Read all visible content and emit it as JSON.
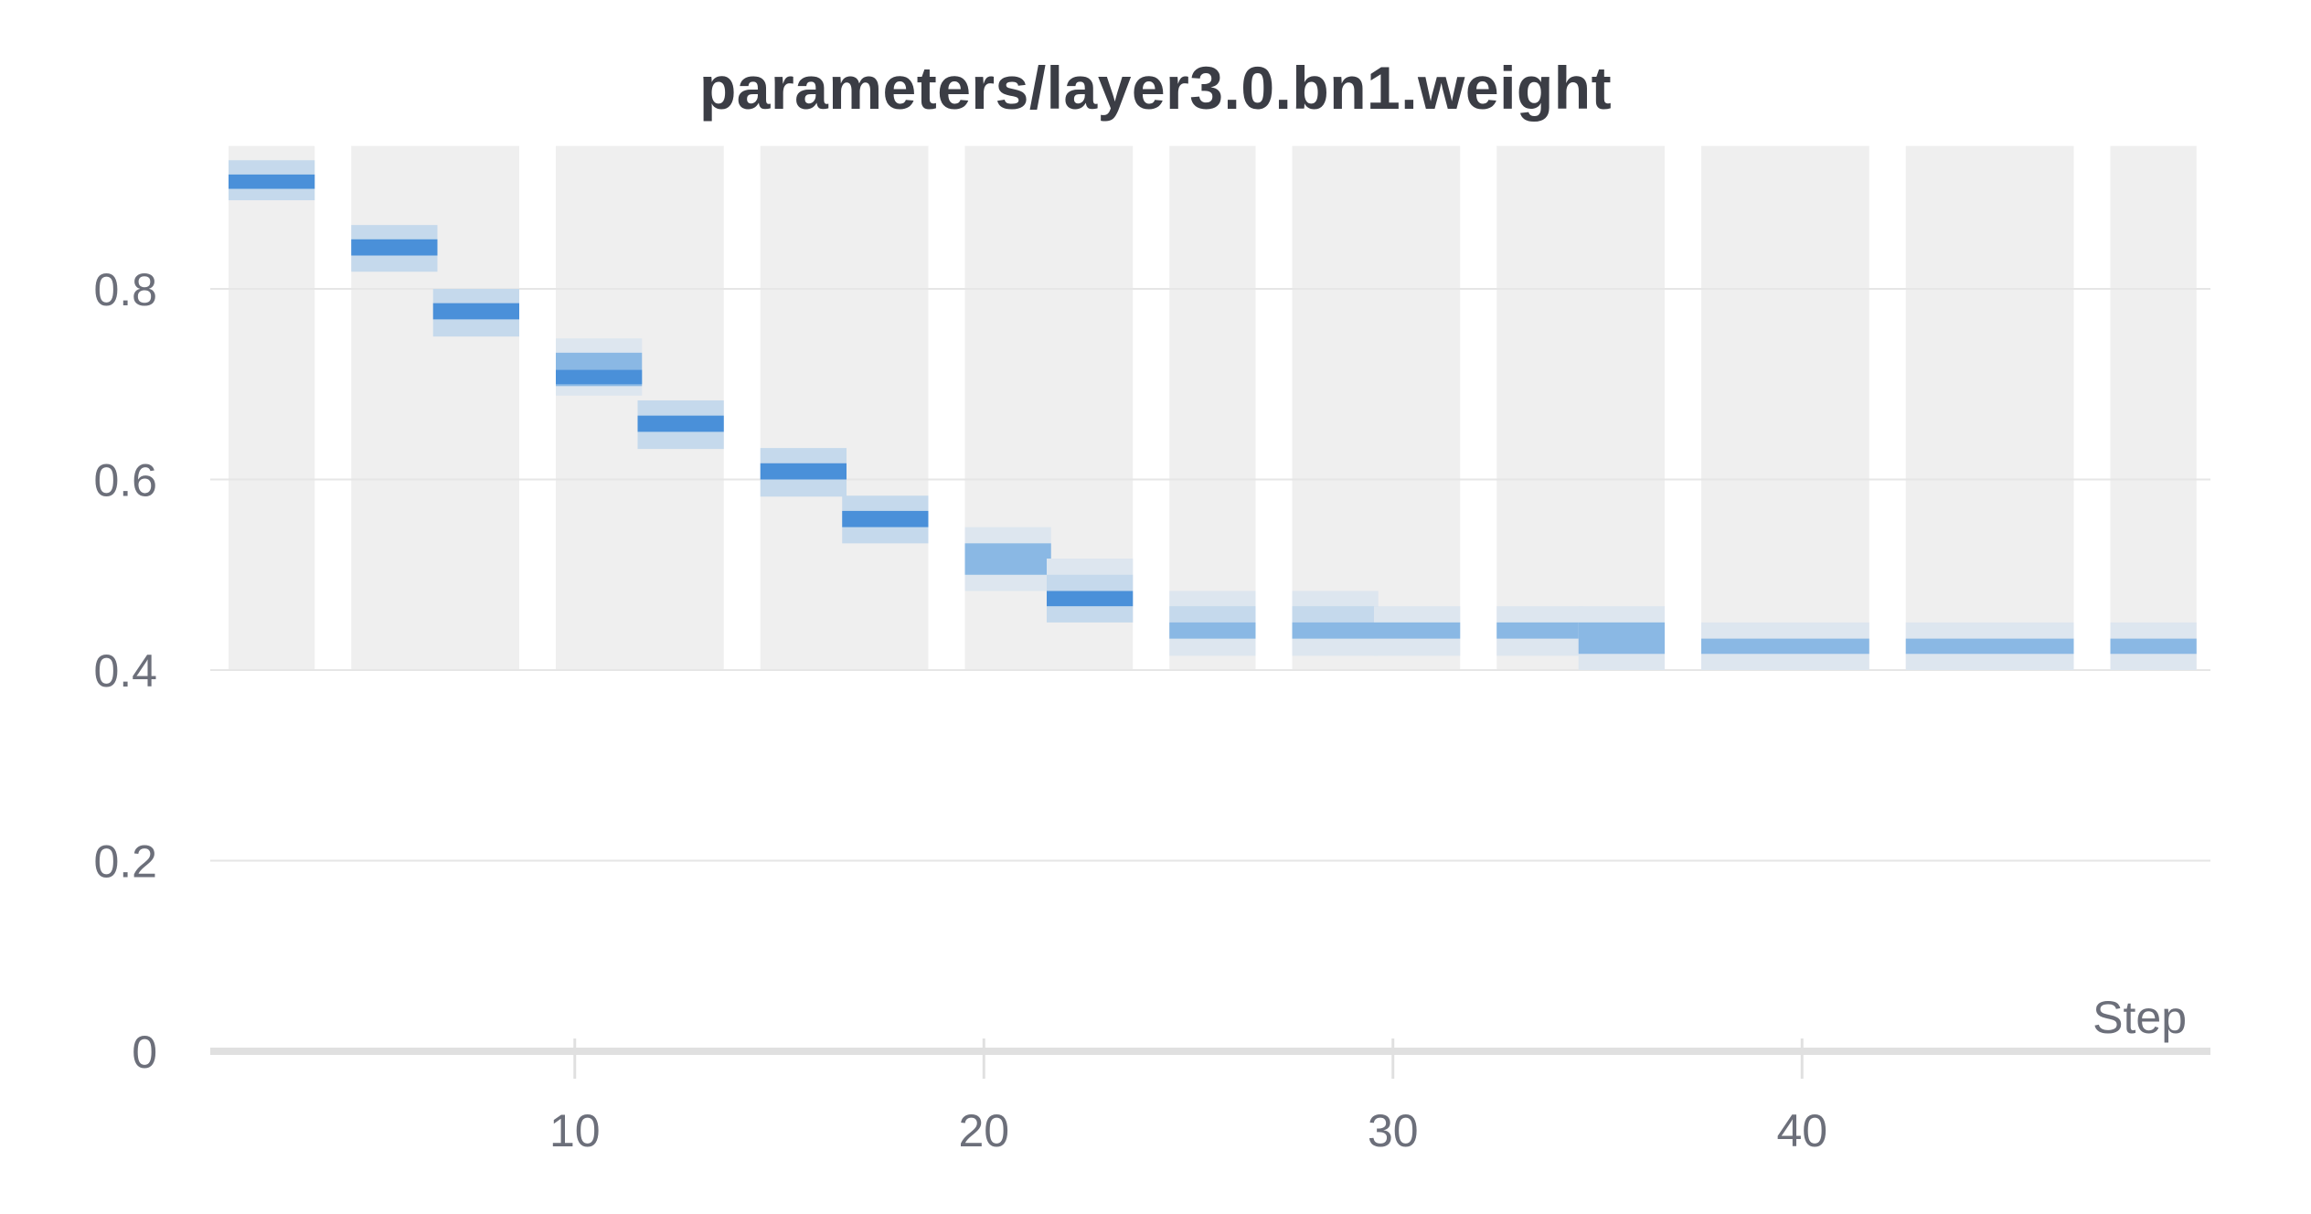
{
  "chart_data": {
    "type": "heatmap",
    "title": "parameters/layer3.0.bn1.weight",
    "xlabel": "Step",
    "ylabel": "",
    "xlim": [
      0.5,
      49.5
    ],
    "ylim": [
      0,
      0.95
    ],
    "x_ticks": [
      10,
      20,
      30,
      40
    ],
    "y_ticks": [
      0,
      0.2,
      0.4,
      0.6,
      0.8
    ],
    "y_tick_labels": [
      "0",
      "0.2",
      "0.4",
      "0.6",
      "0.8"
    ],
    "grid": true,
    "colors": {
      "background_band": "#efefef",
      "peak": "#4a90d9",
      "mid": "#8ab8e4",
      "low": "#c5d9ec",
      "tail": "#dde6ef",
      "grid": "#e6e6e6",
      "axis": "#e0e0e0"
    },
    "background_bands": [
      {
        "x_start": 1,
        "x_end": 3
      },
      {
        "x_start": 4,
        "x_end": 8
      },
      {
        "x_start": 9,
        "x_end": 13
      },
      {
        "x_start": 14,
        "x_end": 18
      },
      {
        "x_start": 19,
        "x_end": 23
      },
      {
        "x_start": 24,
        "x_end": 26
      },
      {
        "x_start": 27,
        "x_end": 31
      },
      {
        "x_start": 32,
        "x_end": 36
      },
      {
        "x_start": 37,
        "x_end": 41
      },
      {
        "x_start": 42,
        "x_end": 46
      },
      {
        "x_start": 47,
        "x_end": 49
      }
    ],
    "bands": [
      {
        "x_start": 1,
        "x_end": 3,
        "y_start": 0.893,
        "y_end": 0.935,
        "intensity": "low"
      },
      {
        "x_start": 1,
        "x_end": 3,
        "y_start": 0.905,
        "y_end": 0.92,
        "intensity": "peak"
      },
      {
        "x_start": 4,
        "x_end": 6,
        "y_start": 0.818,
        "y_end": 0.867,
        "intensity": "low"
      },
      {
        "x_start": 4,
        "x_end": 6,
        "y_start": 0.835,
        "y_end": 0.852,
        "intensity": "peak"
      },
      {
        "x_start": 6,
        "x_end": 8,
        "y_start": 0.75,
        "y_end": 0.8,
        "intensity": "low"
      },
      {
        "x_start": 6,
        "x_end": 8,
        "y_start": 0.768,
        "y_end": 0.785,
        "intensity": "peak"
      },
      {
        "x_start": 9,
        "x_end": 11,
        "y_start": 0.688,
        "y_end": 0.748,
        "intensity": "tail"
      },
      {
        "x_start": 9,
        "x_end": 11,
        "y_start": 0.698,
        "y_end": 0.733,
        "intensity": "mid"
      },
      {
        "x_start": 9,
        "x_end": 11,
        "y_start": 0.7,
        "y_end": 0.715,
        "intensity": "peak"
      },
      {
        "x_start": 11,
        "x_end": 13,
        "y_start": 0.632,
        "y_end": 0.683,
        "intensity": "low"
      },
      {
        "x_start": 11,
        "x_end": 13,
        "y_start": 0.65,
        "y_end": 0.667,
        "intensity": "peak"
      },
      {
        "x_start": 14,
        "x_end": 16,
        "y_start": 0.582,
        "y_end": 0.633,
        "intensity": "low"
      },
      {
        "x_start": 14,
        "x_end": 16,
        "y_start": 0.6,
        "y_end": 0.617,
        "intensity": "peak"
      },
      {
        "x_start": 16,
        "x_end": 18,
        "y_start": 0.533,
        "y_end": 0.583,
        "intensity": "low"
      },
      {
        "x_start": 16,
        "x_end": 18,
        "y_start": 0.55,
        "y_end": 0.567,
        "intensity": "peak"
      },
      {
        "x_start": 19,
        "x_end": 21,
        "y_start": 0.483,
        "y_end": 0.55,
        "intensity": "tail"
      },
      {
        "x_start": 19,
        "x_end": 21,
        "y_start": 0.5,
        "y_end": 0.533,
        "intensity": "mid"
      },
      {
        "x_start": 21,
        "x_end": 23,
        "y_start": 0.45,
        "y_end": 0.517,
        "intensity": "tail"
      },
      {
        "x_start": 21,
        "x_end": 23,
        "y_start": 0.45,
        "y_end": 0.5,
        "intensity": "low"
      },
      {
        "x_start": 21,
        "x_end": 23,
        "y_start": 0.467,
        "y_end": 0.483,
        "intensity": "peak"
      },
      {
        "x_start": 24,
        "x_end": 26,
        "y_start": 0.415,
        "y_end": 0.483,
        "intensity": "tail"
      },
      {
        "x_start": 24,
        "x_end": 26,
        "y_start": 0.433,
        "y_end": 0.467,
        "intensity": "low"
      },
      {
        "x_start": 24,
        "x_end": 26,
        "y_start": 0.433,
        "y_end": 0.45,
        "intensity": "mid"
      },
      {
        "x_start": 27,
        "x_end": 29,
        "y_start": 0.415,
        "y_end": 0.483,
        "intensity": "tail"
      },
      {
        "x_start": 27,
        "x_end": 29,
        "y_start": 0.433,
        "y_end": 0.467,
        "intensity": "low"
      },
      {
        "x_start": 27,
        "x_end": 29,
        "y_start": 0.433,
        "y_end": 0.45,
        "intensity": "mid"
      },
      {
        "x_start": 29,
        "x_end": 31,
        "y_start": 0.415,
        "y_end": 0.467,
        "intensity": "tail"
      },
      {
        "x_start": 29,
        "x_end": 31,
        "y_start": 0.433,
        "y_end": 0.45,
        "intensity": "mid"
      },
      {
        "x_start": 32,
        "x_end": 34,
        "y_start": 0.415,
        "y_end": 0.467,
        "intensity": "tail"
      },
      {
        "x_start": 32,
        "x_end": 34,
        "y_start": 0.433,
        "y_end": 0.45,
        "intensity": "mid"
      },
      {
        "x_start": 34,
        "x_end": 36,
        "y_start": 0.4,
        "y_end": 0.467,
        "intensity": "tail"
      },
      {
        "x_start": 34,
        "x_end": 36,
        "y_start": 0.417,
        "y_end": 0.45,
        "intensity": "mid"
      },
      {
        "x_start": 37,
        "x_end": 41,
        "y_start": 0.4,
        "y_end": 0.45,
        "intensity": "tail"
      },
      {
        "x_start": 37,
        "x_end": 41,
        "y_start": 0.417,
        "y_end": 0.433,
        "intensity": "mid"
      },
      {
        "x_start": 42,
        "x_end": 46,
        "y_start": 0.4,
        "y_end": 0.45,
        "intensity": "tail"
      },
      {
        "x_start": 42,
        "x_end": 46,
        "y_start": 0.417,
        "y_end": 0.433,
        "intensity": "mid"
      },
      {
        "x_start": 47,
        "x_end": 49,
        "y_start": 0.4,
        "y_end": 0.45,
        "intensity": "tail"
      },
      {
        "x_start": 47,
        "x_end": 49,
        "y_start": 0.417,
        "y_end": 0.433,
        "intensity": "mid"
      }
    ]
  }
}
